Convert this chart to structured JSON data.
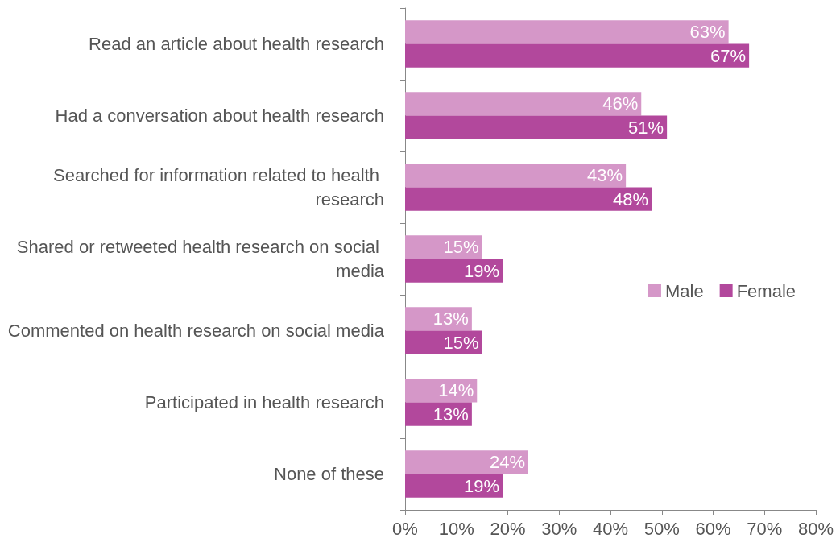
{
  "chart_data": {
    "type": "bar",
    "orientation": "horizontal",
    "categories": [
      "Read an article about health research",
      "Had a conversation about health research",
      "Searched for information related to health research",
      "Shared or retweeted health research on social media",
      "Commented on health research on social media",
      "Participated in health research",
      "None of these"
    ],
    "series": [
      {
        "name": "Male",
        "color": "#d597c8",
        "values": [
          63,
          46,
          43,
          15,
          13,
          14,
          24
        ],
        "value_labels": [
          "63%",
          "46%",
          "43%",
          "15%",
          "13%",
          "14%",
          "24%"
        ]
      },
      {
        "name": "Female",
        "color": "#b2489c",
        "values": [
          67,
          51,
          48,
          19,
          15,
          13,
          19
        ],
        "value_labels": [
          "67%",
          "51%",
          "48%",
          "19%",
          "15%",
          "13%",
          "19%"
        ]
      }
    ],
    "xlim": [
      0,
      80
    ],
    "xticks": [
      {
        "value": 0,
        "label": "0%"
      },
      {
        "value": 10,
        "label": "10%"
      },
      {
        "value": 20,
        "label": "20%"
      },
      {
        "value": 30,
        "label": "30%"
      },
      {
        "value": 40,
        "label": "40%"
      },
      {
        "value": 50,
        "label": "50%"
      },
      {
        "value": 60,
        "label": "60%"
      },
      {
        "value": 70,
        "label": "70%"
      },
      {
        "value": 80,
        "label": "80%"
      }
    ],
    "grid": false,
    "legend": "right"
  }
}
